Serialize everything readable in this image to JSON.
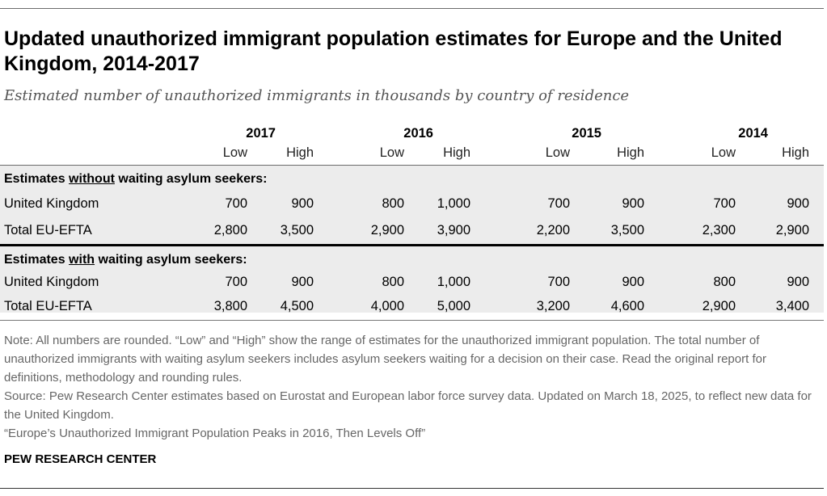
{
  "title": "Updated unauthorized immigrant population estimates for Europe and the United Kingdom, 2014-2017",
  "subtitle": "Estimated number of unauthorized immigrants in thousands by country of residence",
  "chart_data": {
    "type": "table",
    "title": "Updated unauthorized immigrant population estimates for Europe and the United Kingdom, 2014-2017",
    "subtitle": "Estimated number of unauthorized immigrants in thousands by country of residence",
    "units": "thousands",
    "years": [
      "2017",
      "2016",
      "2015",
      "2014"
    ],
    "range_labels": [
      "Low",
      "High"
    ],
    "sections": [
      {
        "header_pre": "Estimates ",
        "header_emph": "without",
        "header_post": " waiting asylum seekers:",
        "rows": [
          {
            "label": "United Kingdom",
            "values": [
              "700",
              "900",
              "800",
              "1,000",
              "700",
              "900",
              "700",
              "900"
            ]
          },
          {
            "label": "Total EU-EFTA",
            "values": [
              "2,800",
              "3,500",
              "2,900",
              "3,900",
              "2,200",
              "3,500",
              "2,300",
              "2,900"
            ]
          }
        ]
      },
      {
        "header_pre": "Estimates ",
        "header_emph": "with",
        "header_post": " waiting asylum seekers:",
        "rows": [
          {
            "label": "United Kingdom",
            "values": [
              "700",
              "900",
              "800",
              "1,000",
              "700",
              "900",
              "800",
              "900"
            ]
          },
          {
            "label": "Total EU-EFTA",
            "values": [
              "3,800",
              "4,500",
              "4,000",
              "5,000",
              "3,200",
              "4,600",
              "2,900",
              "3,400"
            ]
          }
        ]
      }
    ]
  },
  "note": "Note: All numbers are rounded. “Low” and “High” show the range of estimates for the unauthorized immigrant population. The total number of unauthorized immigrants with waiting asylum seekers includes asylum seekers waiting for a decision on their case. Read the original report for definitions, methodology and rounding rules.",
  "source": "Source: Pew Research Center estimates based on Eurostat and European labor force survey data. Updated on March 18, 2025, to reflect new data for the United Kingdom.",
  "report": "“Europe’s Unauthorized Immigrant Population Peaks in 2016, Then Levels Off”",
  "brand": "PEW RESEARCH CENTER"
}
